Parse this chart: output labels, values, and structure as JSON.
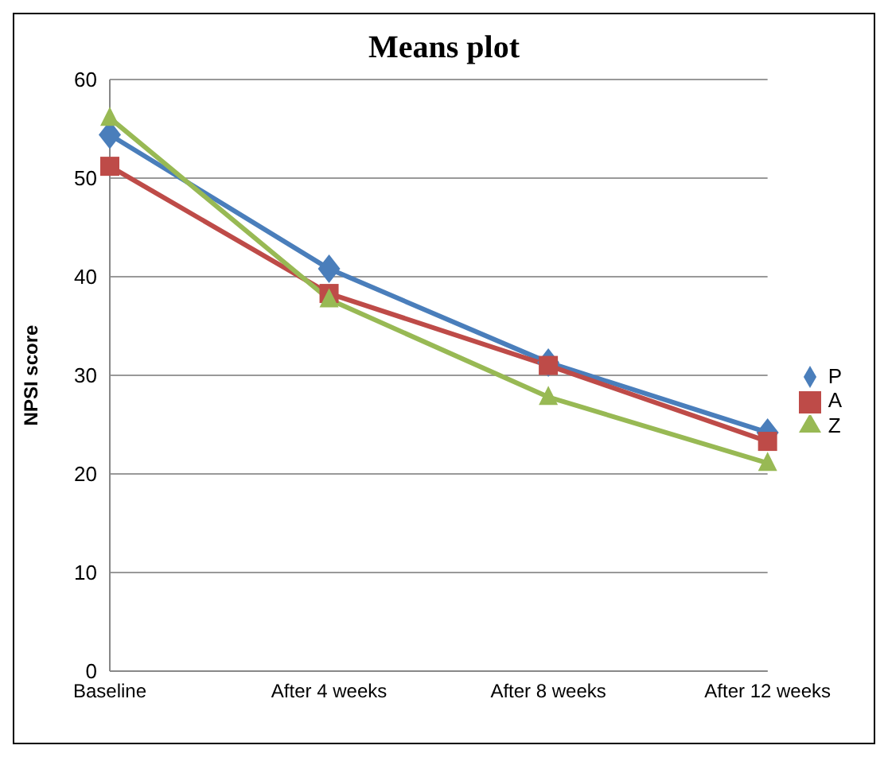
{
  "chart_data": {
    "type": "line",
    "title": "Means plot",
    "ylabel": "NPSI score",
    "categories": [
      "Baseline",
      "After 4 weeks",
      "After 8 weeks",
      "After 12 weeks"
    ],
    "series": [
      {
        "name": "P",
        "color": "#4a7ebb",
        "marker": "diamond",
        "values": [
          54.4,
          40.8,
          31.3,
          24.2
        ]
      },
      {
        "name": "A",
        "color": "#be4b48",
        "marker": "square",
        "values": [
          51.2,
          38.3,
          31.0,
          23.3
        ]
      },
      {
        "name": "Z",
        "color": "#98b954",
        "marker": "triangle",
        "values": [
          56.1,
          37.7,
          27.8,
          21.1
        ]
      }
    ],
    "ylim": [
      0,
      60
    ],
    "yticks": [
      0,
      10,
      20,
      30,
      40,
      50,
      60
    ],
    "grid": "y",
    "legend": "right"
  }
}
